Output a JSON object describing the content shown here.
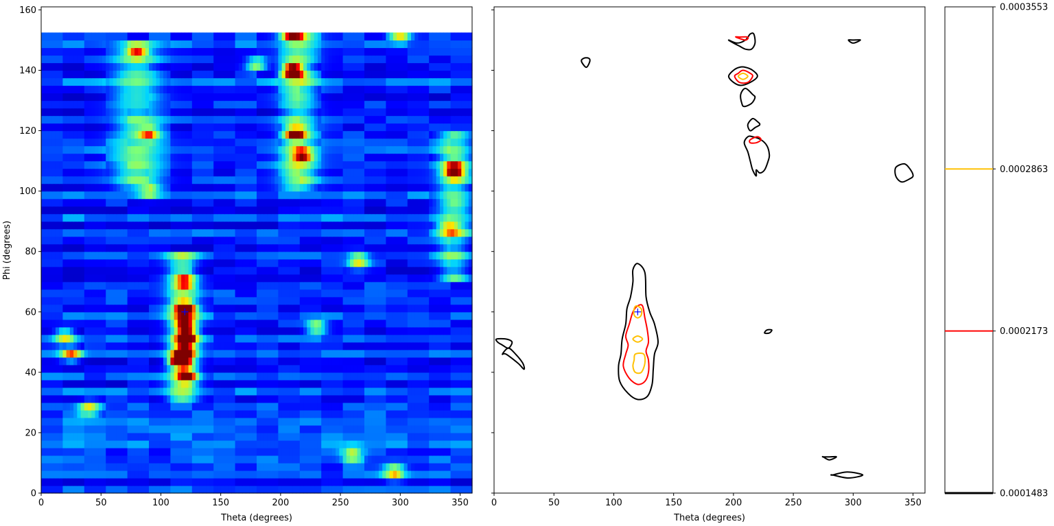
{
  "chart_data": [
    {
      "type": "heatmap",
      "xlabel": "Theta (degrees)",
      "ylabel": "Phi (degrees)",
      "xlim": [
        0,
        360
      ],
      "ylim": [
        0,
        161
      ],
      "data_ymax": 153,
      "x_ticks": [
        "0",
        "50",
        "100",
        "150",
        "200",
        "250",
        "300",
        "350"
      ],
      "y_ticks": [
        "0",
        "20",
        "40",
        "60",
        "80",
        "100",
        "120",
        "140",
        "160"
      ],
      "colormap": "jet",
      "colormap_colors": [
        "#00007f",
        "#0000ff",
        "#00d4ff",
        "#7cff79",
        "#ffe600",
        "#ff0000",
        "#7f0000"
      ],
      "background_level": 0.2,
      "hotspots": [
        {
          "theta": 120,
          "phi": 61,
          "value": 0.98
        },
        {
          "theta": 116,
          "phi": 44,
          "value": 0.95
        },
        {
          "theta": 120,
          "phi": 47,
          "value": 0.85
        },
        {
          "theta": 122,
          "phi": 52,
          "value": 0.86
        },
        {
          "theta": 122,
          "phi": 39,
          "value": 0.7
        },
        {
          "theta": 120,
          "phi": 56,
          "value": 0.65
        },
        {
          "theta": 120,
          "phi": 70,
          "value": 0.5
        },
        {
          "theta": 210,
          "phi": 140,
          "value": 0.98
        },
        {
          "theta": 212,
          "phi": 119,
          "value": 0.75
        },
        {
          "theta": 210,
          "phi": 152,
          "value": 0.7
        },
        {
          "theta": 218,
          "phi": 112,
          "value": 0.55
        },
        {
          "theta": 345,
          "phi": 107,
          "value": 0.7
        },
        {
          "theta": 295,
          "phi": 7,
          "value": 0.55
        },
        {
          "theta": 265,
          "phi": 77,
          "value": 0.5
        },
        {
          "theta": 25,
          "phi": 46,
          "value": 0.5
        },
        {
          "theta": 20,
          "phi": 52,
          "value": 0.45
        },
        {
          "theta": 40,
          "phi": 28,
          "value": 0.45
        },
        {
          "theta": 300,
          "phi": 152,
          "value": 0.5
        },
        {
          "theta": 80,
          "phi": 146,
          "value": 0.45
        },
        {
          "theta": 90,
          "phi": 119,
          "value": 0.45
        },
        {
          "theta": 260,
          "phi": 13,
          "value": 0.45
        },
        {
          "theta": 230,
          "phi": 55,
          "value": 0.4
        },
        {
          "theta": 180,
          "phi": 142,
          "value": 0.4
        },
        {
          "theta": 340,
          "phi": 88,
          "value": 0.35
        },
        {
          "theta": 90,
          "phi": 100,
          "value": 0.35
        }
      ],
      "bands": [
        {
          "theta": 118,
          "phi_min": 30,
          "phi_max": 80,
          "width": 12,
          "value": 0.35
        },
        {
          "theta": 215,
          "phi_min": 100,
          "phi_max": 153,
          "width": 14,
          "value": 0.3
        },
        {
          "theta": 345,
          "phi_min": 70,
          "phi_max": 120,
          "width": 12,
          "value": 0.3
        },
        {
          "theta": 80,
          "phi_min": 100,
          "phi_max": 150,
          "width": 18,
          "value": 0.25
        }
      ],
      "marker": {
        "theta": 120,
        "phi": 60,
        "symbol": "+",
        "color": "#0000ff"
      }
    },
    {
      "type": "contour",
      "xlabel": "Theta (degrees)",
      "xlim": [
        0,
        360
      ],
      "ylim": [
        0,
        161
      ],
      "x_ticks": [
        "0",
        "50",
        "100",
        "150",
        "200",
        "250",
        "300",
        "350"
      ],
      "levels": [
        {
          "value": 0.0001483,
          "label": "0.0001483",
          "color": "#000000"
        },
        {
          "value": 0.0002173,
          "label": "0.0002173",
          "color": "#ff0000"
        },
        {
          "value": 0.0002863,
          "label": "0.0002863",
          "color": "#ffc000"
        },
        {
          "value": 0.0003553,
          "label": "0.0003553",
          "color": "#000000"
        }
      ],
      "contours": [
        {
          "level": 0,
          "points": [
            [
              120,
              76
            ],
            [
              126,
              73
            ],
            [
              127,
              65
            ],
            [
              130,
              60
            ],
            [
              134,
              56
            ],
            [
              137,
              50
            ],
            [
              134,
              46
            ],
            [
              133,
              41
            ],
            [
              132,
              36
            ],
            [
              128,
              32
            ],
            [
              120,
              31
            ],
            [
              112,
              33
            ],
            [
              105,
              37
            ],
            [
              104,
              42
            ],
            [
              106,
              46
            ],
            [
              107,
              51
            ],
            [
              110,
              56
            ],
            [
              111,
              61
            ],
            [
              114,
              65
            ],
            [
              116,
              70
            ],
            [
              116,
              74
            ]
          ]
        },
        {
          "level": 1,
          "points": [
            [
              120,
              62
            ],
            [
              124,
              62
            ],
            [
              126,
              58
            ],
            [
              128,
              54
            ],
            [
              129,
              50
            ],
            [
              127,
              47
            ],
            [
              129,
              44
            ],
            [
              129,
              40
            ],
            [
              126,
              37
            ],
            [
              120,
              36
            ],
            [
              113,
              38
            ],
            [
              108,
              42
            ],
            [
              110,
              46
            ],
            [
              112,
              49
            ],
            [
              110,
              52
            ],
            [
              113,
              56
            ],
            [
              116,
              60
            ]
          ]
        },
        {
          "level": 2,
          "points": [
            [
              119,
              62
            ],
            [
              123,
              61
            ],
            [
              123,
              59
            ],
            [
              120,
              58
            ],
            [
              117,
              59
            ],
            [
              117,
              61
            ]
          ]
        },
        {
          "level": 2,
          "points": [
            [
              120,
              52
            ],
            [
              124,
              51
            ],
            [
              120,
              50
            ],
            [
              116,
              51
            ]
          ]
        },
        {
          "level": 2,
          "points": [
            [
              118,
              46
            ],
            [
              125,
              46
            ],
            [
              126,
              43
            ],
            [
              123,
              40
            ],
            [
              118,
              40
            ],
            [
              116,
              42
            ],
            [
              117,
              44
            ]
          ]
        },
        {
          "level": 0,
          "points": [
            [
              10,
              46
            ],
            [
              20,
              43
            ],
            [
              25,
              41
            ],
            [
              24,
              43
            ],
            [
              18,
              46
            ],
            [
              12,
              48
            ],
            [
              7,
              46
            ]
          ]
        },
        {
          "level": 0,
          "points": [
            [
              2,
              51
            ],
            [
              10,
              51
            ],
            [
              15,
              50
            ],
            [
              12,
              48
            ],
            [
              7,
              49
            ],
            [
              3,
              50
            ]
          ]
        },
        {
          "level": 0,
          "points": [
            [
              77,
              141
            ],
            [
              80,
              143
            ],
            [
              79,
              144
            ],
            [
              75,
              144
            ],
            [
              73,
              143
            ]
          ]
        },
        {
          "level": 0,
          "points": [
            [
              196,
              150
            ],
            [
              200,
              149
            ],
            [
              205,
              148
            ],
            [
              210,
              147
            ],
            [
              215,
              147
            ],
            [
              218,
              149
            ],
            [
              217,
              152
            ],
            [
              214,
              152
            ],
            [
              210,
              150
            ],
            [
              203,
              149
            ]
          ]
        },
        {
          "level": 1,
          "points": [
            [
              202,
              151
            ],
            [
              210,
              150
            ],
            [
              212,
              151
            ],
            [
              205,
              151
            ]
          ]
        },
        {
          "level": 0,
          "points": [
            [
              210,
              141
            ],
            [
              216,
              140
            ],
            [
              220,
              138
            ],
            [
              214,
              136
            ],
            [
              206,
              135
            ],
            [
              200,
              136
            ],
            [
              196,
              138
            ],
            [
              200,
              140
            ],
            [
              205,
              141
            ]
          ]
        },
        {
          "level": 1,
          "points": [
            [
              208,
              140
            ],
            [
              214,
              139
            ],
            [
              216,
              138
            ],
            [
              212,
              136
            ],
            [
              205,
              136
            ],
            [
              201,
              138
            ],
            [
              204,
              139
            ]
          ]
        },
        {
          "level": 2,
          "points": [
            [
              208,
              139
            ],
            [
              212,
              138
            ],
            [
              208,
              137
            ],
            [
              204,
              138
            ]
          ]
        },
        {
          "level": 0,
          "points": [
            [
              210,
              134
            ],
            [
              216,
              132
            ],
            [
              218,
              131
            ],
            [
              215,
              129
            ],
            [
              209,
              128
            ],
            [
              207,
              129
            ],
            [
              206,
              132
            ]
          ]
        },
        {
          "level": 0,
          "points": [
            [
              216,
              124
            ],
            [
              220,
              123
            ],
            [
              222,
              122
            ],
            [
              218,
              121
            ],
            [
              214,
              120
            ],
            [
              212,
              122
            ]
          ]
        },
        {
          "level": 0,
          "points": [
            [
              212,
              118
            ],
            [
              216,
              118
            ],
            [
              223,
              117
            ],
            [
              228,
              115
            ],
            [
              230,
              112
            ],
            [
              229,
              110
            ],
            [
              226,
              107
            ],
            [
              222,
              106
            ],
            [
              219,
              107
            ],
            [
              219,
              105
            ],
            [
              216,
              107
            ],
            [
              214,
              110
            ],
            [
              212,
              113
            ],
            [
              209,
              116
            ]
          ]
        },
        {
          "level": 1,
          "points": [
            [
              214,
              117
            ],
            [
              220,
              118
            ],
            [
              223,
              117
            ],
            [
              219,
              116
            ],
            [
              214,
              116
            ]
          ]
        },
        {
          "level": 0,
          "points": [
            [
              336,
              108
            ],
            [
              343,
              109
            ],
            [
              348,
              107
            ],
            [
              350,
              105
            ],
            [
              347,
              104
            ],
            [
              341,
              103
            ],
            [
              337,
              104
            ],
            [
              335,
              106
            ]
          ]
        },
        {
          "level": 0,
          "points": [
            [
              228,
              54
            ],
            [
              232,
              54
            ],
            [
              230,
              53
            ],
            [
              226,
              53
            ]
          ]
        },
        {
          "level": 0,
          "points": [
            [
              275,
              12
            ],
            [
              280,
              12
            ],
            [
              286,
              12
            ],
            [
              280,
              11
            ],
            [
              275,
              12
            ]
          ]
        },
        {
          "level": 0,
          "points": [
            [
              283,
              6
            ],
            [
              295,
              7
            ],
            [
              308,
              6
            ],
            [
              296,
              5
            ],
            [
              283,
              6
            ]
          ]
        },
        {
          "level": 0,
          "points": [
            [
              296,
              150
            ],
            [
              300,
              149
            ],
            [
              306,
              150
            ],
            [
              300,
              150
            ]
          ]
        }
      ],
      "marker": {
        "theta": 120,
        "phi": 60,
        "symbol": "+",
        "color": "#0000ff"
      }
    }
  ],
  "colorbar": {
    "tick_labels": [
      "0.0001483",
      "0.0002173",
      "0.0002863",
      "0.0003553"
    ]
  }
}
